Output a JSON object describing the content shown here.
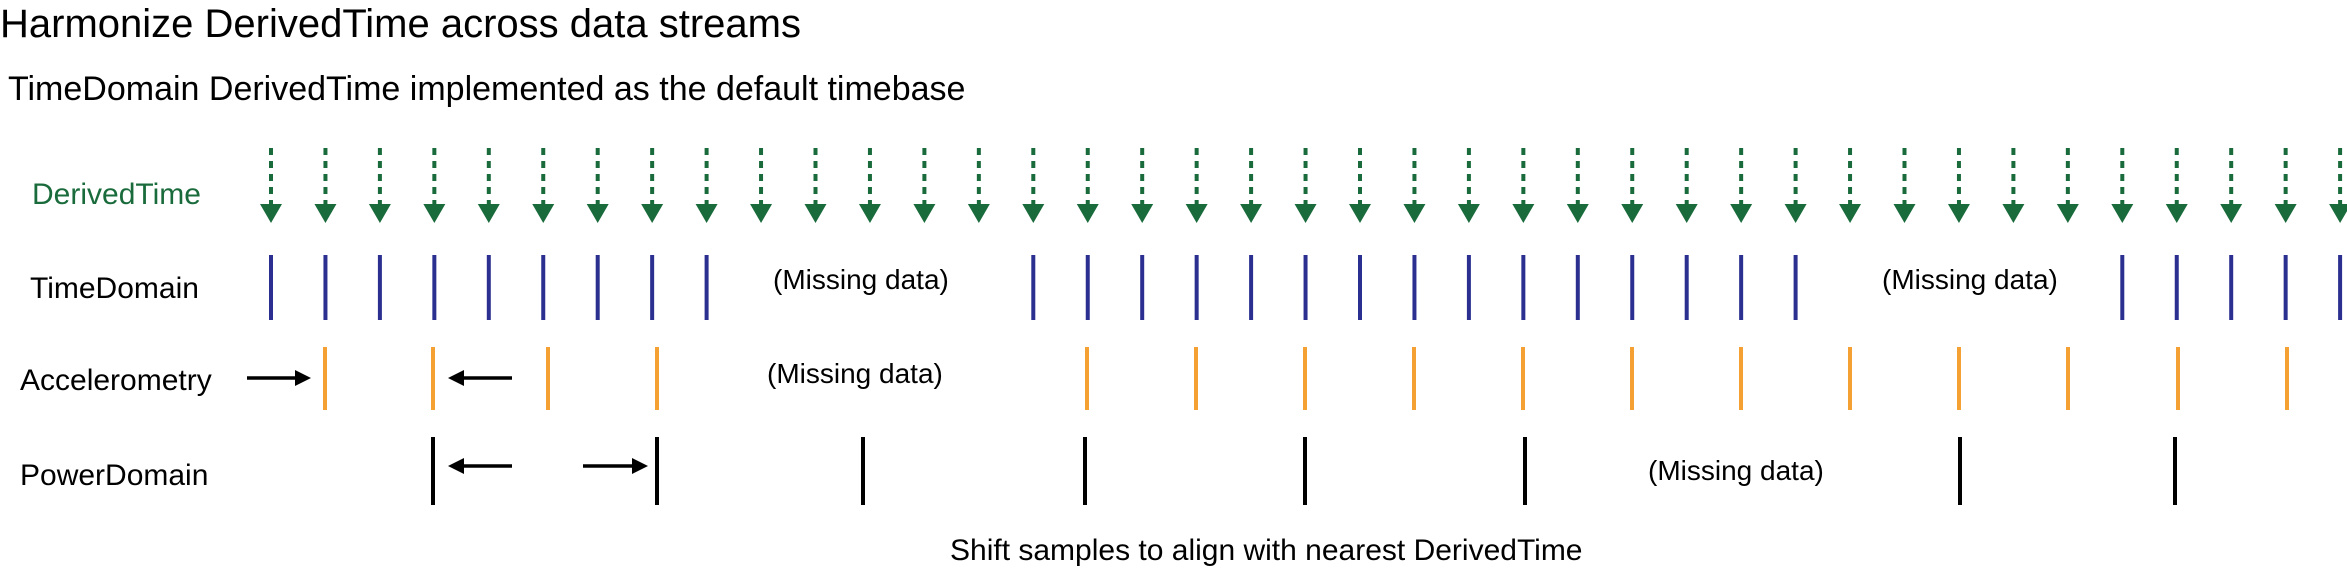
{
  "title": "Harmonize DerivedTime across data streams",
  "subtitle": "TimeDomain DerivedTime implemented as the default timebase",
  "rows": {
    "derived": "DerivedTime",
    "timedomain": "TimeDomain",
    "accelerometry": "Accelerometry",
    "powerdomain": "PowerDomain"
  },
  "missing": {
    "timedomain_1": "(Missing data)",
    "timedomain_2": "(Missing data)",
    "accelerometry_1": "(Missing data)",
    "powerdomain_1": "(Missing data)"
  },
  "caption": "Shift samples to align with nearest DerivedTime",
  "colors": {
    "derived": "#1a6b3c",
    "timedomain": "#2b2f8f",
    "accelerometry": "#f5a033",
    "powerdomain": "#000000"
  }
}
